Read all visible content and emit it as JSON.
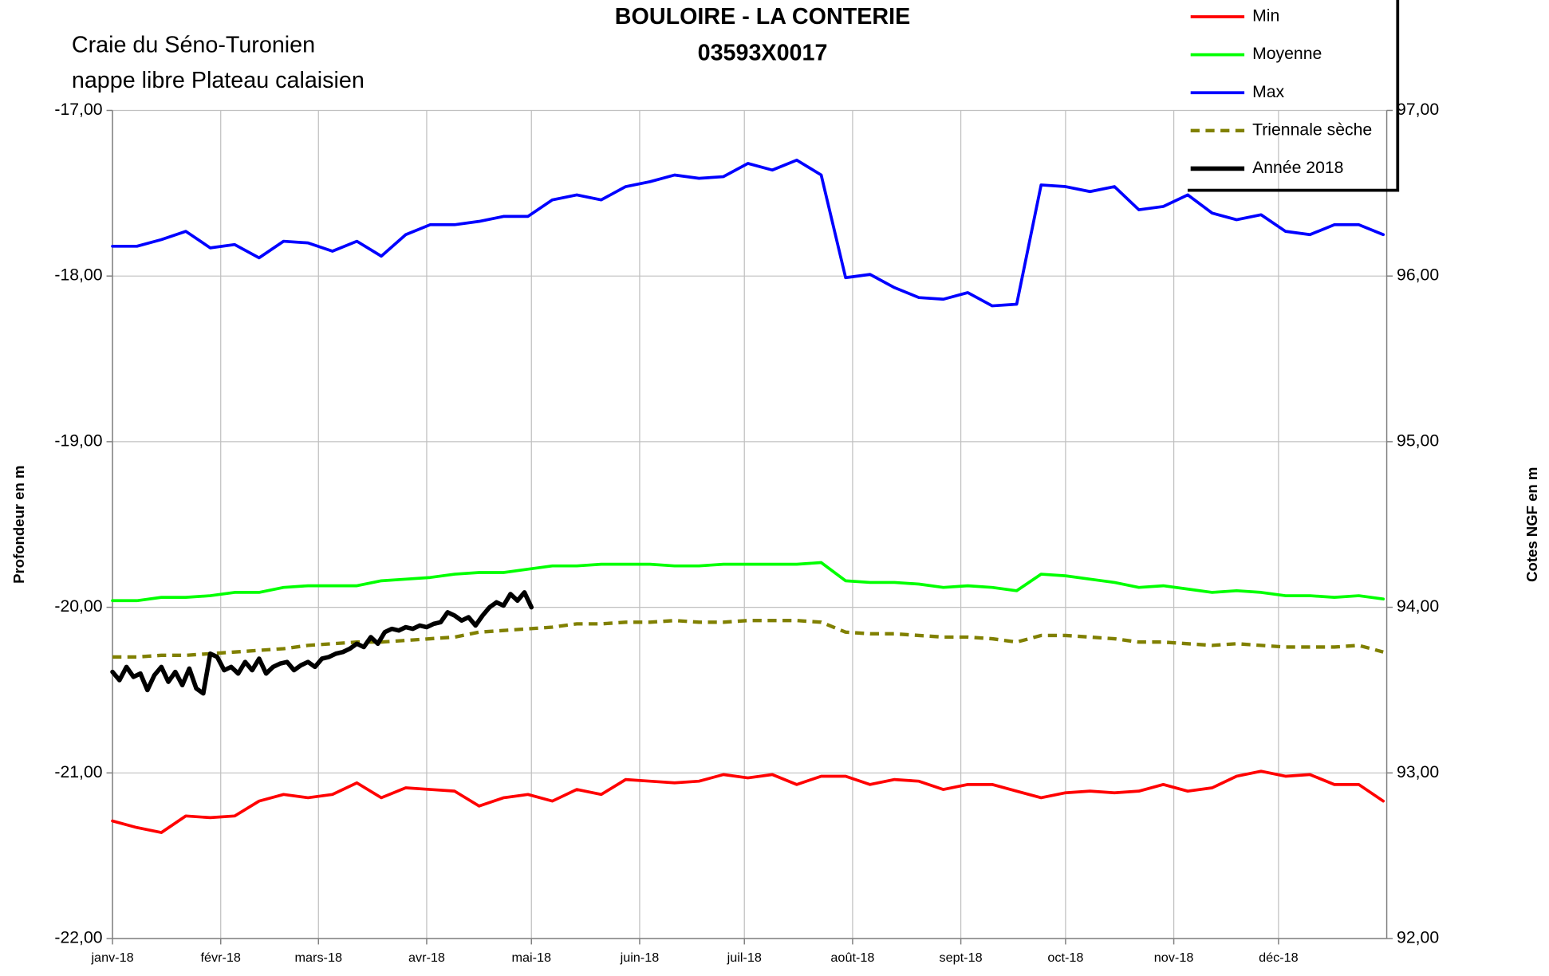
{
  "chart_data": {
    "type": "line",
    "title": [
      "BOULOIRE - LA CONTERIE",
      "03593X0017"
    ],
    "subtitle": [
      "Craie du Séno-Turonien",
      "nappe libre Plateau calaisien"
    ],
    "ylabel": "Profondeur en m",
    "y2label": "Cotes NGF en m",
    "xlim": [
      0,
      365
    ],
    "xticks": [
      {
        "value": 0,
        "label": "janv-18"
      },
      {
        "value": 31,
        "label": "févr-18"
      },
      {
        "value": 59,
        "label": "mars-18"
      },
      {
        "value": 90,
        "label": "avr-18"
      },
      {
        "value": 120,
        "label": "mai-18"
      },
      {
        "value": 151,
        "label": "juin-18"
      },
      {
        "value": 181,
        "label": "juil-18"
      },
      {
        "value": 212,
        "label": "août-18"
      },
      {
        "value": 243,
        "label": "sept-18"
      },
      {
        "value": 273,
        "label": "oct-18"
      },
      {
        "value": 304,
        "label": "nov-18"
      },
      {
        "value": 334,
        "label": "déc-18"
      }
    ],
    "ylim": [
      -22,
      -17
    ],
    "yticks": [
      {
        "value": -17,
        "label": "-17,00"
      },
      {
        "value": -18,
        "label": "-18,00"
      },
      {
        "value": -19,
        "label": "-19,00"
      },
      {
        "value": -20,
        "label": "-20,00"
      },
      {
        "value": -21,
        "label": "-21,00"
      },
      {
        "value": -22,
        "label": "-22,00"
      }
    ],
    "y2lim": [
      92,
      97
    ],
    "y2ticks": [
      {
        "value": 97,
        "label": "97,00"
      },
      {
        "value": 96,
        "label": "96,00"
      },
      {
        "value": 95,
        "label": "95,00"
      },
      {
        "value": 94,
        "label": "94,00"
      },
      {
        "value": 93,
        "label": "93,00"
      },
      {
        "value": 92,
        "label": "92,00"
      }
    ],
    "grid": true,
    "legend": "top-right",
    "x": [
      0,
      7,
      14,
      21,
      28,
      35,
      42,
      49,
      56,
      63,
      70,
      77,
      84,
      91,
      98,
      105,
      112,
      119,
      126,
      133,
      140,
      147,
      154,
      161,
      168,
      175,
      182,
      189,
      196,
      203,
      210,
      217,
      224,
      231,
      238,
      245,
      252,
      259,
      266,
      273,
      280,
      287,
      294,
      301,
      308,
      315,
      322,
      329,
      336,
      343,
      350,
      357,
      364
    ],
    "series": [
      {
        "name": "Min",
        "color": "#ff0000",
        "line_width": 3,
        "values": [
          -21.29,
          -21.33,
          -21.36,
          -21.26,
          -21.27,
          -21.26,
          -21.17,
          -21.13,
          -21.15,
          -21.13,
          -21.06,
          -21.15,
          -21.09,
          -21.1,
          -21.11,
          -21.2,
          -21.15,
          -21.13,
          -21.17,
          -21.1,
          -21.13,
          -21.04,
          -21.05,
          -21.06,
          -21.05,
          -21.01,
          -21.03,
          -21.01,
          -21.07,
          -21.02,
          -21.02,
          -21.07,
          -21.04,
          -21.05,
          -21.1,
          -21.07,
          -21.07,
          -21.11,
          -21.15,
          -21.12,
          -21.11,
          -21.12,
          -21.11,
          -21.07,
          -21.11,
          -21.09,
          -21.02,
          -20.99,
          -21.02,
          -21.01,
          -21.07,
          -21.07,
          -21.17
        ]
      },
      {
        "name": "Moyenne",
        "color": "#00ff00",
        "line_width": 3,
        "values": [
          -19.96,
          -19.96,
          -19.94,
          -19.94,
          -19.93,
          -19.91,
          -19.91,
          -19.88,
          -19.87,
          -19.87,
          -19.87,
          -19.84,
          -19.83,
          -19.82,
          -19.8,
          -19.79,
          -19.79,
          -19.77,
          -19.75,
          -19.75,
          -19.74,
          -19.74,
          -19.74,
          -19.75,
          -19.75,
          -19.74,
          -19.74,
          -19.74,
          -19.74,
          -19.73,
          -19.84,
          -19.85,
          -19.85,
          -19.86,
          -19.88,
          -19.87,
          -19.88,
          -19.9,
          -19.8,
          -19.81,
          -19.83,
          -19.85,
          -19.88,
          -19.87,
          -19.89,
          -19.91,
          -19.9,
          -19.91,
          -19.93,
          -19.93,
          -19.94,
          -19.93,
          -19.95
        ]
      },
      {
        "name": "Max",
        "color": "#0000ff",
        "line_width": 3,
        "values": [
          -17.82,
          -17.82,
          -17.78,
          -17.73,
          -17.83,
          -17.81,
          -17.89,
          -17.79,
          -17.8,
          -17.85,
          -17.79,
          -17.88,
          -17.75,
          -17.69,
          -17.69,
          -17.67,
          -17.64,
          -17.64,
          -17.54,
          -17.51,
          -17.54,
          -17.46,
          -17.43,
          -17.39,
          -17.41,
          -17.4,
          -17.32,
          -17.36,
          -17.3,
          -17.39,
          -18.01,
          -17.99,
          -18.07,
          -18.13,
          -18.14,
          -18.1,
          -18.18,
          -18.17,
          -17.45,
          -17.46,
          -17.49,
          -17.46,
          -17.6,
          -17.58,
          -17.51,
          -17.62,
          -17.66,
          -17.63,
          -17.73,
          -17.75,
          -17.69,
          -17.69,
          -17.75
        ]
      },
      {
        "name": "Triennale sèche",
        "color": "#808000",
        "line_width": 3.5,
        "dashed": true,
        "values": [
          -20.3,
          -20.3,
          -20.29,
          -20.29,
          -20.28,
          -20.27,
          -20.26,
          -20.25,
          -20.23,
          -20.22,
          -20.21,
          -20.21,
          -20.2,
          -20.19,
          -20.18,
          -20.15,
          -20.14,
          -20.13,
          -20.12,
          -20.1,
          -20.1,
          -20.09,
          -20.09,
          -20.08,
          -20.09,
          -20.09,
          -20.08,
          -20.08,
          -20.08,
          -20.09,
          -20.15,
          -20.16,
          -20.16,
          -20.17,
          -20.18,
          -20.18,
          -20.19,
          -20.21,
          -20.17,
          -20.17,
          -20.18,
          -20.19,
          -20.21,
          -20.21,
          -20.22,
          -20.23,
          -20.22,
          -20.23,
          -20.24,
          -20.24,
          -20.24,
          -20.23,
          -20.27
        ]
      },
      {
        "name": "Année 2018",
        "color": "#000000",
        "line_width": 4.5,
        "x": [
          0,
          2,
          4,
          6,
          8,
          10,
          12,
          14,
          16,
          18,
          20,
          22,
          24,
          26,
          28,
          30,
          32,
          34,
          36,
          38,
          40,
          42,
          44,
          46,
          48,
          50,
          52,
          54,
          56,
          58,
          60,
          62,
          64,
          66,
          68,
          70,
          72,
          74,
          76,
          78,
          80,
          82,
          84,
          86,
          88,
          90,
          92,
          94,
          96,
          98,
          100,
          102,
          104,
          106,
          108,
          110,
          112,
          114,
          116,
          118,
          120
        ],
        "values": [
          -20.39,
          -20.44,
          -20.36,
          -20.42,
          -20.4,
          -20.5,
          -20.41,
          -20.36,
          -20.45,
          -20.39,
          -20.47,
          -20.37,
          -20.49,
          -20.52,
          -20.28,
          -20.3,
          -20.38,
          -20.36,
          -20.4,
          -20.33,
          -20.38,
          -20.31,
          -20.4,
          -20.36,
          -20.34,
          -20.33,
          -20.38,
          -20.35,
          -20.33,
          -20.36,
          -20.31,
          -20.3,
          -20.28,
          -20.27,
          -20.25,
          -20.22,
          -20.24,
          -20.18,
          -20.22,
          -20.15,
          -20.13,
          -20.14,
          -20.12,
          -20.13,
          -20.11,
          -20.12,
          -20.1,
          -20.09,
          -20.03,
          -20.05,
          -20.08,
          -20.06,
          -20.11,
          -20.05,
          -20.0,
          -19.97,
          -19.99,
          -19.92,
          -19.96,
          -19.91,
          -20.0
        ]
      }
    ]
  }
}
